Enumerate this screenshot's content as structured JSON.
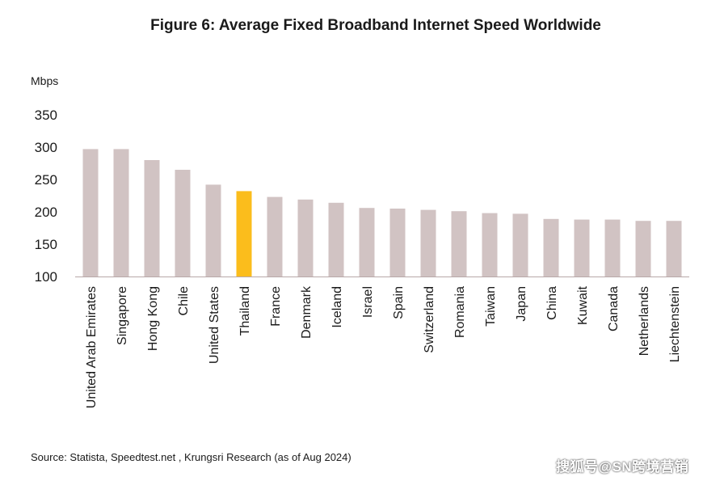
{
  "title": "Figure 6: Average Fixed Broadband Internet Speed Worldwide",
  "source": "Source: Statista, Speedtest.net , Krungsri Research (as of Aug 2024)",
  "watermark": "搜狐号@SN跨境营销",
  "colors": {
    "bar": "#d1c3c3",
    "highlight": "#fbbd1c",
    "axis": "#b8a9a9",
    "text": "#1a1a1a"
  },
  "chart_data": {
    "type": "bar",
    "ylabel": "Mbps",
    "ylim": [
      100,
      350
    ],
    "yticks": [
      100,
      150,
      200,
      250,
      300,
      350
    ],
    "grid": false,
    "highlight": "Thailand",
    "categories": [
      "United Arab Emirates",
      "Singapore",
      "Hong Kong",
      "Chile",
      "United States",
      "Thailand",
      "France",
      "Denmark",
      "Iceland",
      "Israel",
      "Spain",
      "Switzerland",
      "Romania",
      "Taiwan",
      "Japan",
      "China",
      "Kuwait",
      "Canada",
      "Netherlands",
      "Liechtenstein"
    ],
    "values": [
      297,
      297,
      280,
      265,
      242,
      232,
      223,
      219,
      214,
      206,
      205,
      203,
      201,
      198,
      197,
      189,
      188,
      188,
      186,
      186
    ]
  }
}
